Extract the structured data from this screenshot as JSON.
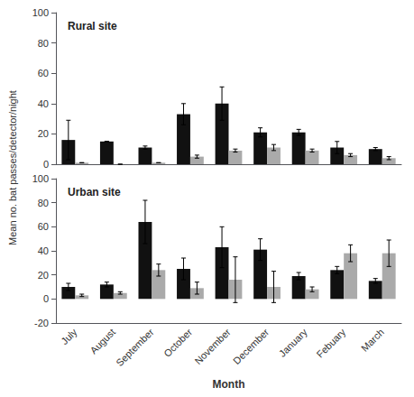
{
  "chart_data": [
    {
      "type": "bar",
      "title": "Rural site",
      "ylabel": "Mean no. bat passes/detector/night",
      "categories": [
        "July",
        "August",
        "September",
        "October",
        "November",
        "December",
        "January",
        "Febuary",
        "March"
      ],
      "series": [
        {
          "color": "#111111",
          "values": [
            16,
            15,
            11,
            33,
            40,
            21,
            21,
            11,
            10
          ],
          "errors": [
            13,
            0,
            1,
            7,
            11,
            3,
            2,
            4,
            1
          ]
        },
        {
          "color": "#aaaaaa",
          "values": [
            1,
            0,
            1,
            5,
            9,
            11,
            9,
            6,
            4
          ],
          "errors": [
            0,
            0,
            0,
            1,
            1,
            2,
            1,
            1,
            1
          ]
        }
      ],
      "ylim": [
        0,
        100
      ],
      "yticks": [
        0,
        20,
        40,
        60,
        80,
        100
      ],
      "grid": false,
      "tick_labels": "y"
    },
    {
      "type": "bar",
      "title": "Urban site",
      "xlabel": "Month",
      "categories": [
        "July",
        "August",
        "September",
        "October",
        "November",
        "December",
        "January",
        "Febuary",
        "March"
      ],
      "series": [
        {
          "color": "#111111",
          "values": [
            10,
            12,
            64,
            25,
            43,
            41,
            19,
            24,
            15
          ],
          "errors": [
            3,
            2,
            18,
            9,
            17,
            9,
            3,
            3,
            2
          ]
        },
        {
          "color": "#aaaaaa",
          "values": [
            3,
            5,
            24,
            9,
            16,
            10,
            8,
            38,
            38
          ],
          "errors": [
            1,
            1,
            5,
            5,
            19,
            13,
            2,
            7,
            11
          ]
        }
      ],
      "ylim": [
        -20,
        100
      ],
      "yticks": [
        -20,
        0,
        20,
        40,
        60,
        80,
        100
      ],
      "grid": false
    }
  ]
}
